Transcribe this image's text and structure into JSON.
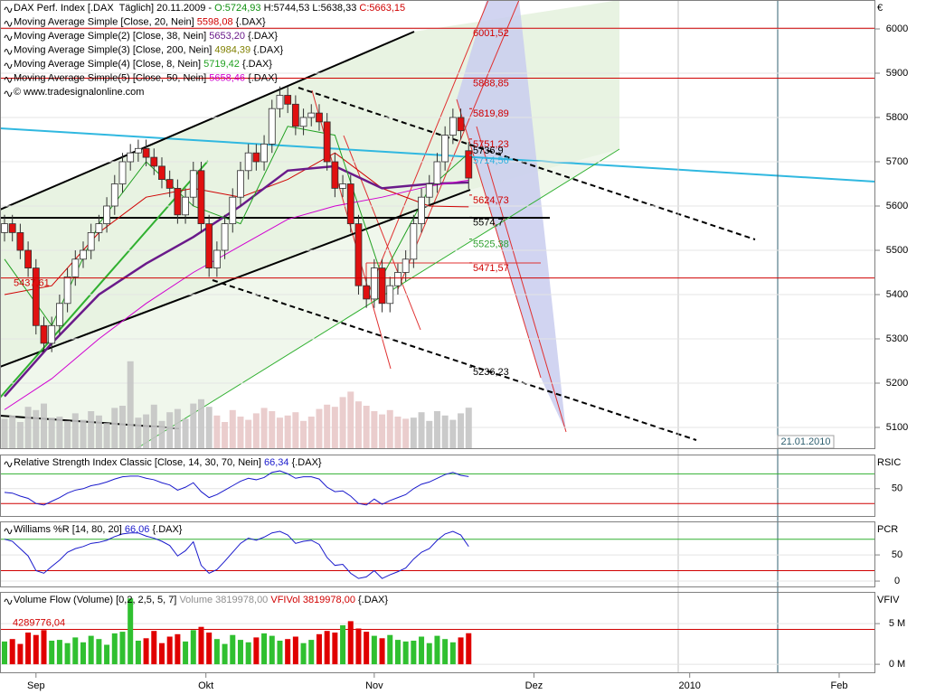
{
  "chart_data": [
    {
      "type": "candlestick",
      "legend": [
        [
          {
            "text": "DAX Perf. Index [.DAX  Täglich] 20.11.2009 - "
          },
          {
            "text": "O:5724,93",
            "color": "#109010"
          },
          {
            "text": " H:5744,53 L:5638,33 "
          },
          {
            "text": "C:5663,15",
            "color": "#d00000"
          }
        ],
        [
          {
            "text": "Moving Average Simple [Close, 20, Nein] "
          },
          {
            "text": "5598,08",
            "color": "#d00000"
          },
          {
            "text": " {.DAX}"
          }
        ],
        [
          {
            "text": "Moving Average Simple(2) [Close, 38, Nein] "
          },
          {
            "text": "5653,20",
            "color": "#6a1a8a"
          },
          {
            "text": " {.DAX}"
          }
        ],
        [
          {
            "text": "Moving Average Simple(3) [Close, 200, Nein] "
          },
          {
            "text": "4984,39",
            "color": "#808000"
          },
          {
            "text": " {.DAX}"
          }
        ],
        [
          {
            "text": "Moving Average Simple(4) [Close, 8, Nein] "
          },
          {
            "text": "5719,42",
            "color": "#20a020"
          },
          {
            "text": " {.DAX}"
          }
        ],
        [
          {
            "text": "Moving Average Simple(5) [Close, 50, Nein] "
          },
          {
            "text": "5658,46",
            "color": "#d000d0"
          },
          {
            "text": " {.DAX}"
          }
        ],
        [
          {
            "text": "© www.tradesignalonline.com"
          }
        ]
      ],
      "y_label": "€",
      "xlim": [
        0,
        110.7
      ],
      "xticks": [
        {
          "value": 4,
          "label": "Sep"
        },
        {
          "value": 25.6,
          "label": "Okt"
        },
        {
          "value": 47,
          "label": "Nov"
        },
        {
          "value": 67.3,
          "label": "Dez"
        },
        {
          "value": 87.1,
          "label": "2010"
        },
        {
          "value": 106.1,
          "label": "Feb"
        }
      ],
      "ylim": [
        5051,
        6065.3
      ],
      "yticks": [
        5100,
        5200,
        5300,
        5400,
        5500,
        5600,
        5700,
        5800,
        5900,
        6000
      ],
      "up_color": "#ffffff",
      "down_color": "#e01010",
      "open": [
        5540,
        5560,
        5540,
        5500,
        5460,
        5330,
        5290,
        5330,
        5380,
        5440,
        5480,
        5500,
        5540,
        5560,
        5600,
        5650,
        5700,
        5720,
        5730,
        5710,
        5690,
        5660,
        5640,
        5580,
        5620,
        5680,
        5560,
        5460,
        5500,
        5560,
        5620,
        5680,
        5720,
        5700,
        5740,
        5820,
        5850,
        5830,
        5780,
        5800,
        5810,
        5790,
        5700,
        5640,
        5650,
        5560,
        5420,
        5390,
        5460,
        5380,
        5420,
        5450,
        5480,
        5560,
        5620,
        5650,
        5700,
        5760,
        5800,
        5724.93
      ],
      "high": [
        5580,
        5580,
        5560,
        5520,
        5480,
        5350,
        5350,
        5400,
        5460,
        5500,
        5520,
        5560,
        5580,
        5620,
        5670,
        5720,
        5740,
        5750,
        5750,
        5730,
        5710,
        5680,
        5660,
        5640,
        5700,
        5700,
        5580,
        5520,
        5580,
        5640,
        5700,
        5740,
        5740,
        5760,
        5840,
        5870,
        5870,
        5850,
        5820,
        5830,
        5830,
        5810,
        5720,
        5670,
        5670,
        5580,
        5440,
        5480,
        5480,
        5440,
        5470,
        5500,
        5580,
        5640,
        5670,
        5720,
        5780,
        5820,
        5820,
        5744.53
      ],
      "low": [
        5520,
        5520,
        5480,
        5440,
        5310,
        5270,
        5270,
        5310,
        5360,
        5420,
        5460,
        5480,
        5520,
        5540,
        5580,
        5630,
        5680,
        5700,
        5690,
        5670,
        5640,
        5620,
        5560,
        5560,
        5600,
        5540,
        5440,
        5440,
        5480,
        5540,
        5600,
        5660,
        5680,
        5680,
        5720,
        5800,
        5810,
        5760,
        5760,
        5780,
        5770,
        5680,
        5620,
        5620,
        5540,
        5400,
        5370,
        5370,
        5360,
        5360,
        5400,
        5430,
        5460,
        5540,
        5600,
        5630,
        5680,
        5740,
        5750,
        5638.33
      ],
      "close": [
        5560,
        5540,
        5500,
        5460,
        5330,
        5290,
        5330,
        5380,
        5440,
        5480,
        5500,
        5540,
        5560,
        5600,
        5650,
        5700,
        5720,
        5730,
        5710,
        5690,
        5660,
        5640,
        5580,
        5620,
        5680,
        5560,
        5460,
        5500,
        5560,
        5620,
        5680,
        5720,
        5700,
        5740,
        5820,
        5850,
        5830,
        5780,
        5800,
        5810,
        5790,
        5700,
        5640,
        5650,
        5560,
        5420,
        5390,
        5460,
        5380,
        5420,
        5450,
        5480,
        5560,
        5620,
        5650,
        5700,
        5760,
        5800,
        5770,
        5663.15
      ],
      "series": [
        {
          "color": "#d00000",
          "x": [
            0,
            6,
            12,
            18,
            24,
            30,
            36,
            42,
            48,
            54,
            59
          ],
          "values": [
            5400,
            5420,
            5540,
            5620,
            5640,
            5620,
            5660,
            5720,
            5640,
            5600,
            5598.08
          ]
        },
        {
          "color": "#6a1a8a",
          "x": [
            0,
            6,
            12,
            18,
            24,
            30,
            36,
            42,
            48,
            54,
            59
          ],
          "values": [
            5170,
            5290,
            5400,
            5470,
            5530,
            5600,
            5680,
            5690,
            5640,
            5650,
            5653.2
          ]
        },
        {
          "color": "#20a020",
          "x": [
            0,
            6,
            12,
            18,
            24,
            30,
            36,
            42,
            48,
            54,
            59
          ],
          "values": [
            5480,
            5330,
            5560,
            5700,
            5600,
            5560,
            5780,
            5760,
            5440,
            5640,
            5719.42
          ]
        },
        {
          "color": "#d000d0",
          "x": [
            0,
            6,
            12,
            18,
            24,
            30,
            36,
            42,
            48,
            54,
            59
          ],
          "values": [
            5140,
            5210,
            5300,
            5380,
            5450,
            5510,
            5570,
            5600,
            5620,
            5645,
            5658.46
          ]
        }
      ],
      "annotations": [
        {
          "value": 6001.52,
          "label": "6001,52",
          "color": "#d00000",
          "line": true
        },
        {
          "value": 5888.85,
          "label": "5888,85",
          "color": "#d00000",
          "line": true
        },
        {
          "value": 5819.89,
          "label": "5819,89",
          "color": "#d00000",
          "line": false
        },
        {
          "value": 5751.23,
          "label": "5751,23",
          "color": "#d00000",
          "line": false
        },
        {
          "value": 5736.9,
          "label": "5736,9",
          "color": "#000000",
          "line": false
        },
        {
          "value": 5714.56,
          "label": "5714,56",
          "color": "#30b0e0",
          "line": false
        },
        {
          "value": 5624.73,
          "label": "5624,73",
          "color": "#d00000",
          "line": false
        },
        {
          "value": 5574.7,
          "label": "5574,7",
          "color": "#000000",
          "line": false
        },
        {
          "value": 5525.38,
          "label": "5525,38",
          "color": "#30a030",
          "line": false
        },
        {
          "value": 5471.57,
          "label": "5471,57",
          "color": "#d00000",
          "line": false
        },
        {
          "value": 5236.23,
          "label": "5236,23",
          "color": "#000000",
          "line": false
        },
        {
          "value": 5437.61,
          "label": "5437,61",
          "color": "#d00000",
          "line": true
        }
      ],
      "date_label": "21.01.2010"
    },
    {
      "type": "line",
      "legend": [
        [
          {
            "text": "Relative Strength Index Classic [Close, 14, 30, 70, Nein] "
          },
          {
            "text": "66,34",
            "color": "#1a1acc"
          },
          {
            "text": " {.DAX}"
          }
        ]
      ],
      "y_label": "RSIC",
      "color": "#1a1acc",
      "ylim": [
        12,
        96
      ],
      "yticks": [
        50
      ],
      "levels": [
        {
          "value": 70,
          "color": "#30b030"
        },
        {
          "value": 30,
          "color": "#d00000"
        }
      ],
      "values": [
        45,
        44,
        40,
        37,
        30,
        28,
        33,
        38,
        44,
        48,
        50,
        54,
        56,
        59,
        63,
        66,
        67,
        67,
        64,
        62,
        58,
        55,
        48,
        52,
        58,
        46,
        38,
        42,
        48,
        54,
        60,
        64,
        62,
        65,
        72,
        74,
        70,
        64,
        66,
        66,
        63,
        52,
        46,
        47,
        40,
        30,
        28,
        36,
        29,
        34,
        38,
        42,
        50,
        56,
        59,
        64,
        69,
        72,
        68,
        66.34
      ]
    },
    {
      "type": "line",
      "legend": [
        [
          {
            "text": "Williams %R [14, 80, 20] "
          },
          {
            "text": "66,06",
            "color": "#1a1acc"
          },
          {
            "text": " {.DAX}"
          }
        ]
      ],
      "y_label": "PCR",
      "color": "#1a1acc",
      "ylim": [
        -12,
        114
      ],
      "yticks": [
        0,
        50
      ],
      "levels": [
        {
          "value": 80,
          "color": "#30b030"
        },
        {
          "value": 20,
          "color": "#d00000"
        }
      ],
      "values": [
        80,
        76,
        62,
        48,
        20,
        15,
        28,
        40,
        55,
        62,
        66,
        72,
        74,
        78,
        85,
        90,
        92,
        92,
        86,
        82,
        76,
        68,
        48,
        58,
        75,
        30,
        15,
        22,
        38,
        55,
        72,
        82,
        78,
        84,
        92,
        95,
        88,
        72,
        76,
        78,
        70,
        45,
        30,
        32,
        15,
        5,
        8,
        20,
        5,
        12,
        18,
        25,
        42,
        55,
        62,
        78,
        90,
        95,
        88,
        66.06
      ]
    },
    {
      "type": "bar",
      "legend": [
        [
          {
            "text": "Volume Flow (Volume) [0,2, 2,5, 5, 7] "
          },
          {
            "text": "Volume 3819978,00",
            "color": "#909090"
          },
          {
            "text": " VFIVol 3819978,00",
            "color": "#d00000"
          },
          {
            "text": " {.DAX}"
          }
        ]
      ],
      "y_label": "VFIV",
      "up_color": "#30c030",
      "down_color": "#e00000",
      "ylim": [
        -1.1,
        8.9
      ],
      "yticks": [
        {
          "value": 0,
          "label": "0 M"
        },
        {
          "value": 5,
          "label": "5 M"
        }
      ],
      "levels": [
        {
          "value": 4.28977604,
          "label": "4289776,04",
          "color": "#d00000"
        }
      ],
      "values": [
        2.8,
        3.1,
        2.5,
        3.9,
        3.6,
        4.2,
        2.9,
        3.0,
        2.6,
        3.3,
        2.7,
        3.5,
        3.1,
        2.4,
        3.8,
        4.0,
        8.1,
        2.9,
        3.2,
        4.1,
        2.6,
        3.4,
        3.7,
        2.8,
        4.2,
        4.6,
        3.9,
        3.1,
        2.5,
        3.6,
        3.0,
        2.7,
        3.3,
        3.8,
        3.5,
        2.9,
        3.1,
        3.4,
        2.6,
        3.0,
        3.7,
        4.1,
        3.9,
        4.8,
        5.3,
        4.4,
        4.0,
        3.5,
        3.2,
        3.6,
        3.0,
        2.8,
        2.9,
        3.4,
        2.6,
        3.5,
        3.1,
        2.7,
        3.3,
        3.819978
      ]
    }
  ]
}
